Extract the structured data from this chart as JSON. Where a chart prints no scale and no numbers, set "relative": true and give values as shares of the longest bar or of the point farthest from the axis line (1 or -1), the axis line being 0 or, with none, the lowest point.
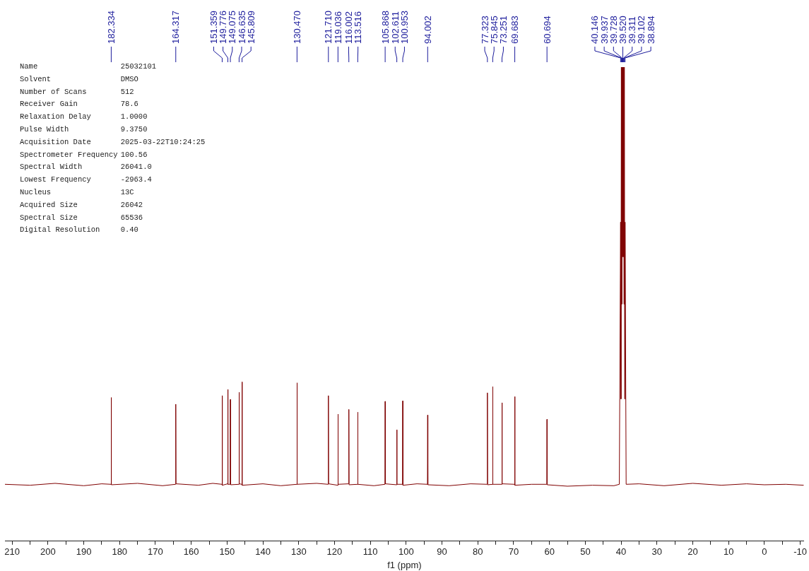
{
  "chart_data": {
    "type": "line",
    "relative": true,
    "xlabel": "f1 (ppm)",
    "xlim": [
      212,
      -11
    ],
    "xticks": [
      210,
      {
        "value": 205,
        "label": null
      },
      200,
      {
        "value": 195,
        "label": null
      },
      190,
      {
        "value": 185,
        "label": null
      },
      180,
      {
        "value": 175,
        "label": null
      },
      170,
      {
        "value": 165,
        "label": null
      },
      160,
      {
        "value": 155,
        "label": null
      },
      150,
      {
        "value": 145,
        "label": null
      },
      140,
      {
        "value": 135,
        "label": null
      },
      130,
      {
        "value": 125,
        "label": null
      },
      120,
      {
        "value": 115,
        "label": null
      },
      110,
      {
        "value": 105,
        "label": null
      },
      100,
      {
        "value": 95,
        "label": null
      },
      90,
      {
        "value": 85,
        "label": null
      },
      80,
      {
        "value": 75,
        "label": null
      },
      70,
      {
        "value": 65,
        "label": null
      },
      60,
      {
        "value": 55,
        "label": null
      },
      50,
      {
        "value": 45,
        "label": null
      },
      40,
      {
        "value": 35,
        "label": null
      },
      30,
      {
        "value": 25,
        "label": null
      },
      20,
      {
        "value": 15,
        "label": null
      },
      10,
      {
        "value": 5,
        "label": null
      },
      0,
      {
        "value": -5,
        "label": null
      },
      -10
    ],
    "series": [
      {
        "color": "#7f0000",
        "x": [
          212,
          205,
          198,
          190,
          185,
          182.4,
          182.334,
          182.27,
          175,
          168,
          164.38,
          164.317,
          164.25,
          158,
          154,
          151.42,
          151.359,
          151.3,
          149.84,
          149.776,
          149.72,
          149.13,
          149.075,
          149.0,
          146.7,
          146.635,
          146.58,
          145.87,
          145.809,
          145.75,
          140,
          135,
          130.53,
          130.47,
          130.41,
          125,
          121.77,
          121.71,
          121.65,
          119.1,
          119.036,
          118.97,
          116.06,
          116.002,
          115.94,
          113.58,
          113.516,
          113.45,
          109,
          105.93,
          105.868,
          105.8,
          102.67,
          102.611,
          102.55,
          101.01,
          100.953,
          100.89,
          97,
          94.06,
          94.002,
          93.94,
          88,
          82,
          77.38,
          77.323,
          77.26,
          75.9,
          75.845,
          75.78,
          73.31,
          73.251,
          73.19,
          69.74,
          69.683,
          69.62,
          65,
          60.75,
          60.694,
          60.63,
          55,
          48,
          42,
          40.5,
          40.146,
          40.04,
          39.937,
          39.83,
          39.728,
          39.62,
          39.52,
          39.41,
          39.311,
          39.2,
          39.102,
          39.0,
          38.894,
          38.6,
          35,
          28,
          20,
          12,
          5,
          0,
          -6,
          -11
        ],
        "values": [
          0.12,
          0.118,
          0.122,
          0.117,
          0.121,
          0.12,
          0.303,
          0.119,
          0.122,
          0.117,
          0.12,
          0.289,
          0.121,
          0.118,
          0.122,
          0.12,
          0.307,
          0.118,
          0.121,
          0.32,
          0.12,
          0.12,
          0.299,
          0.119,
          0.12,
          0.314,
          0.121,
          0.12,
          0.336,
          0.118,
          0.121,
          0.117,
          0.12,
          0.334,
          0.12,
          0.122,
          0.12,
          0.307,
          0.121,
          0.118,
          0.268,
          0.12,
          0.121,
          0.278,
          0.119,
          0.12,
          0.272,
          0.12,
          0.117,
          0.12,
          0.295,
          0.121,
          0.119,
          0.235,
          0.12,
          0.12,
          0.296,
          0.118,
          0.121,
          0.12,
          0.266,
          0.119,
          0.117,
          0.121,
          0.12,
          0.313,
          0.119,
          0.12,
          0.326,
          0.12,
          0.12,
          0.292,
          0.121,
          0.12,
          0.305,
          0.118,
          0.12,
          0.12,
          0.257,
          0.119,
          0.116,
          0.118,
          0.117,
          0.12,
          0.673,
          0.3,
          1,
          0.5,
          1,
          0.6,
          1,
          0.6,
          1,
          0.5,
          1,
          0.3,
          0.673,
          0.12,
          0.121,
          0.117,
          0.122,
          0.118,
          0.121,
          0.119,
          0.12,
          0.118
        ]
      }
    ],
    "annotations": [
      "Name",
      "25032101",
      "Solvent",
      "DMSO",
      "Number of Scans",
      "512",
      "Receiver Gain",
      "78.6",
      "Relaxation Delay",
      "1.0000",
      "Pulse Width",
      "9.3750",
      "Acquisition Date",
      "2025-03-22T10:24:25",
      "Spectrometer Frequency",
      "100.56",
      "Spectral Width",
      "26041.0",
      "Lowest Frequency",
      "-2963.4",
      "Nucleus",
      "13C",
      "Acquired Size",
      "26042",
      "Spectral Size",
      "65536",
      "Digital Resolution",
      "0.40",
      {
        "text": "182.334",
        "x": 182.334
      },
      {
        "text": "164.317",
        "x": 164.317
      },
      {
        "text": "151.359",
        "x": 151.359
      },
      {
        "text": "149.776",
        "x": 149.776
      },
      {
        "text": "149.075",
        "x": 149.075
      },
      {
        "text": "146.635",
        "x": 146.635
      },
      {
        "text": "145.809",
        "x": 145.809
      },
      {
        "text": "130.470",
        "x": 130.47
      },
      {
        "text": "121.710",
        "x": 121.71
      },
      {
        "text": "119.036",
        "x": 119.036
      },
      {
        "text": "116.002",
        "x": 116.002
      },
      {
        "text": "113.516",
        "x": 113.516
      },
      {
        "text": "105.868",
        "x": 105.868
      },
      {
        "text": "102.611",
        "x": 102.611
      },
      {
        "text": "100.953",
        "x": 100.953
      },
      {
        "text": "94.002",
        "x": 94.002
      },
      {
        "text": "77.323",
        "x": 77.323
      },
      {
        "text": "75.845",
        "x": 75.845
      },
      {
        "text": "73.251",
        "x": 73.251
      },
      {
        "text": "69.683",
        "x": 69.683
      },
      {
        "text": "60.694",
        "x": 60.694
      },
      {
        "text": "40.146",
        "x": 40.146
      },
      {
        "text": "39.937",
        "x": 39.937
      },
      {
        "text": "39.728",
        "x": 39.728
      },
      {
        "text": "39.520",
        "x": 39.52
      },
      {
        "text": "39.311",
        "x": 39.311
      },
      {
        "text": "39.102",
        "x": 39.102
      },
      {
        "text": "38.894",
        "x": 38.894
      }
    ]
  }
}
